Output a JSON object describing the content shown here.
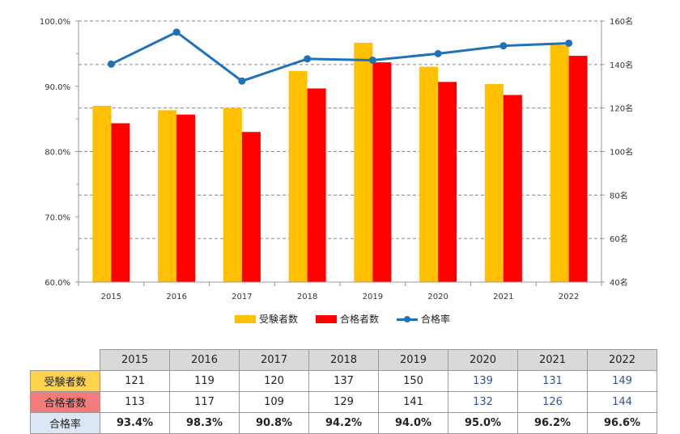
{
  "chart_data": {
    "type": "bar",
    "categories": [
      "2015",
      "2016",
      "2017",
      "2018",
      "2019",
      "2020",
      "2021",
      "2022"
    ],
    "series": [
      {
        "name": "受験者数",
        "type": "bar",
        "axis": "right",
        "color": "#ffc000",
        "values": [
          121,
          119,
          120,
          137,
          150,
          139,
          131,
          149
        ]
      },
      {
        "name": "合格者数",
        "type": "bar",
        "axis": "right",
        "color": "#ff0000",
        "values": [
          113,
          117,
          109,
          129,
          141,
          132,
          126,
          144
        ]
      },
      {
        "name": "合格率",
        "type": "line",
        "axis": "left",
        "color": "#1f72b8",
        "values": [
          93.4,
          98.3,
          90.8,
          94.2,
          94.0,
          95.0,
          96.2,
          96.6
        ]
      }
    ],
    "left_axis": {
      "ylim": [
        60,
        100
      ],
      "ticks": [
        "60.0%",
        "70.0%",
        "80.0%",
        "90.0%",
        "100.0%"
      ]
    },
    "right_axis": {
      "ylim": [
        40,
        160
      ],
      "ticks": [
        "40名",
        "60名",
        "80名",
        "100名",
        "120名",
        "140名",
        "160名"
      ]
    },
    "grid": "dashed-horizontal",
    "legend_position": "bottom"
  },
  "legend": {
    "exam": "受験者数",
    "pass": "合格者数",
    "rate": "合格率"
  },
  "table": {
    "years": [
      "2015",
      "2016",
      "2017",
      "2018",
      "2019",
      "2020",
      "2021",
      "2022"
    ],
    "rows": [
      {
        "label": "受験者数",
        "values": [
          "121",
          "119",
          "120",
          "137",
          "150",
          "139",
          "131",
          "149"
        ]
      },
      {
        "label": "合格者数",
        "values": [
          "113",
          "117",
          "109",
          "129",
          "141",
          "132",
          "126",
          "144"
        ]
      },
      {
        "label": "合格率",
        "values": [
          "93.4%",
          "98.3%",
          "90.8%",
          "94.2%",
          "94.0%",
          "95.0%",
          "96.2%",
          "96.6%"
        ]
      }
    ]
  }
}
